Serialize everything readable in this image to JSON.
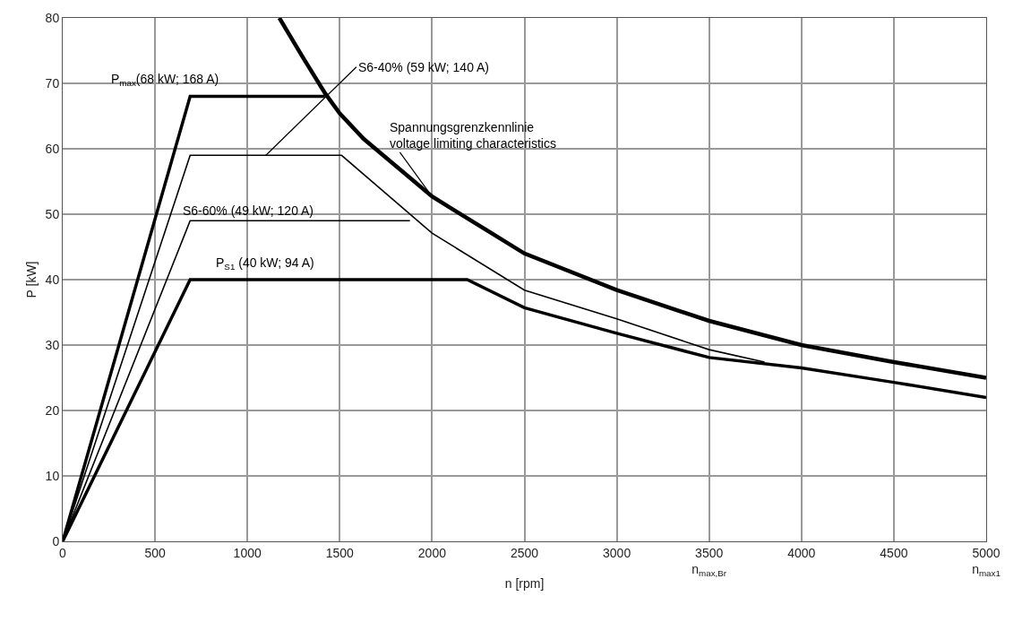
{
  "chart_data": {
    "type": "line",
    "xlabel": "n [rpm]",
    "ylabel": "P [kW]",
    "xlim": [
      0,
      5000
    ],
    "ylim": [
      0,
      80
    ],
    "xticks": [
      0,
      500,
      1000,
      1500,
      2000,
      2500,
      3000,
      {
        "value": 3500,
        "label": "3500\nn$_{max,Br}$"
      },
      4000,
      4500,
      {
        "value": 5000,
        "label": "5000\nn$_{max1}$"
      }
    ],
    "yticks": [
      0,
      10,
      20,
      30,
      40,
      50,
      60,
      70,
      80
    ],
    "grid": true,
    "legend": false,
    "marker": "none",
    "line_style": "solid",
    "series": [
      {
        "name": "P$_{max}$(68 kW; 168 A)",
        "color": "#000000",
        "x": [
          0,
          690,
          1420
        ],
        "values": [
          0,
          68,
          68
        ]
      },
      {
        "name": "S6-40% (59 kW; 140 A)",
        "color": "#000000",
        "x": [
          0,
          690,
          1510,
          2000,
          2500,
          3000,
          3500,
          3800
        ],
        "values": [
          0,
          59,
          59,
          47.1,
          38.4,
          34,
          29.3,
          27.4
        ]
      },
      {
        "name": "S6-60% (49 kW; 120 A)",
        "color": "#000000",
        "x": [
          0,
          690,
          1880
        ],
        "values": [
          0,
          49,
          49
        ]
      },
      {
        "name": "P$_{S1}$ (40 kW; 94 A)",
        "color": "#000000",
        "x": [
          0,
          690,
          2190,
          2500,
          3000,
          3500,
          4000,
          4500,
          5000
        ],
        "values": [
          0,
          40,
          40,
          35.7,
          31.8,
          28.1,
          26.5,
          24.3,
          22
        ]
      },
      {
        "name": "Spannungsgrenzkennlinie\nvoltage limiting characteristics",
        "color": "#000000",
        "x": [
          1173,
          1300,
          1420,
          1500,
          1630,
          2000,
          2500,
          3000,
          3500,
          4000,
          4500,
          5000
        ],
        "values": [
          80,
          74,
          68.5,
          65.4,
          61.5,
          52.7,
          44,
          38.4,
          33.7,
          30,
          27.4,
          25
        ]
      }
    ]
  }
}
